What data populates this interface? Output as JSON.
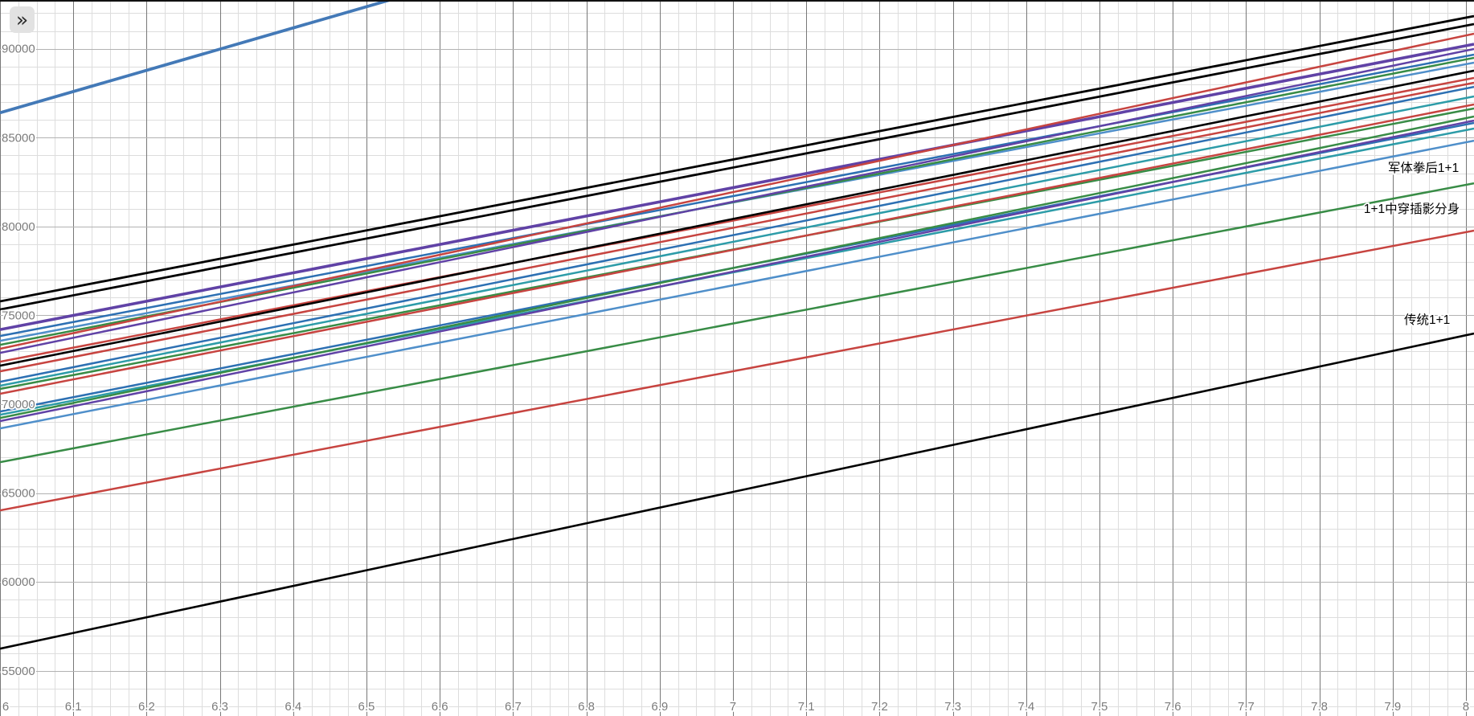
{
  "ui": {
    "expand_button_glyph": "»"
  },
  "chart_data": {
    "type": "line",
    "title": "",
    "xlabel": "",
    "ylabel": "",
    "grid": true,
    "x_axis": {
      "min": 6,
      "max": 8.011,
      "major_step": 0.1,
      "minor_step": 0.025,
      "tick_values": [
        6,
        6.1,
        6.2,
        6.3,
        6.4,
        6.5,
        6.6,
        6.7,
        6.8,
        6.9,
        7,
        7.1,
        7.2,
        7.3,
        7.4,
        7.5,
        7.6,
        7.7,
        7.8,
        7.9,
        8
      ],
      "tick_labels": [
        "6",
        "6.1",
        "6.2",
        "6.3",
        "6.4",
        "6.5",
        "6.6",
        "6.7",
        "6.8",
        "6.9",
        "7",
        "7.1",
        "7.2",
        "7.3",
        "7.4",
        "7.5",
        "7.6",
        "7.7",
        "7.8",
        "7.9",
        "8"
      ]
    },
    "y_axis": {
      "min": 52460,
      "max": 92745,
      "major_step": 5000,
      "minor_step": 1000,
      "tick_values": [
        90000,
        85000,
        80000,
        75000,
        70000,
        65000,
        60000,
        55000
      ],
      "tick_labels": [
        "90000",
        "85000",
        "80000",
        "75000",
        "70000",
        "65000",
        "60000",
        "55000"
      ]
    },
    "palette": {
      "black": "#000000",
      "blue": "#2d70b3",
      "lightblue": "#4f8fca",
      "teal": "#2d9ca8",
      "red": "#c74440",
      "green": "#388c46",
      "purple": "#6042a6",
      "steel": "#4379b7",
      "grid_major_v": "#787878",
      "grid_major_h": "#b2b2b2",
      "grid_minor": "#dddddd",
      "tick_text": "#7b7b7b",
      "label_text": "#000000"
    },
    "series_x": [
      6,
      8.011
    ],
    "series": [
      {
        "color": "steel",
        "width": 3.8,
        "y": [
          86400,
          110400
        ]
      },
      {
        "color": "black",
        "width": 2.8,
        "y": [
          75790,
          91840
        ]
      },
      {
        "color": "black",
        "width": 2.8,
        "y": [
          75330,
          91390
        ]
      },
      {
        "color": "purple",
        "width": 3.6,
        "y": [
          74200,
          90260
        ]
      },
      {
        "color": "blue",
        "width": 2.5,
        "y": [
          73840,
          89670
        ]
      },
      {
        "color": "lightblue",
        "width": 2.5,
        "y": [
          73570,
          89220
        ]
      },
      {
        "color": "green",
        "width": 2.5,
        "y": [
          73340,
          89490
        ]
      },
      {
        "color": "red",
        "width": 2.5,
        "y": [
          73120,
          90850
        ]
      },
      {
        "color": "purple",
        "width": 2.5,
        "y": [
          72890,
          89990
        ]
      },
      {
        "color": "red",
        "width": 2.5,
        "y": [
          72390,
          88360
        ]
      },
      {
        "color": "black",
        "width": 2.6,
        "y": [
          72170,
          88770
        ]
      },
      {
        "color": "red",
        "width": 2.5,
        "y": [
          71850,
          88090
        ]
      },
      {
        "color": "blue",
        "width": 2.5,
        "y": [
          71260,
          87860
        ]
      },
      {
        "color": "teal",
        "width": 2.5,
        "y": [
          71040,
          87320
        ]
      },
      {
        "color": "green",
        "width": 2.5,
        "y": [
          70860,
          86640
        ]
      },
      {
        "color": "red",
        "width": 2.5,
        "y": [
          70590,
          86870
        ]
      },
      {
        "color": "blue",
        "width": 2.5,
        "y": [
          69590,
          85830
        ]
      },
      {
        "color": "teal",
        "width": 2.5,
        "y": [
          69410,
          85510
        ]
      },
      {
        "color": "green",
        "width": 2.5,
        "y": [
          69230,
          86190
        ]
      },
      {
        "color": "purple",
        "width": 2.5,
        "y": [
          69050,
          85960
        ]
      },
      {
        "color": "lightblue",
        "width": 2.5,
        "y": [
          68640,
          84830
        ]
      },
      {
        "color": "green",
        "width": 2.5,
        "y": [
          66740,
          82430
        ]
      },
      {
        "color": "red",
        "width": 2.5,
        "y": [
          64030,
          79770
        ]
      },
      {
        "color": "black",
        "width": 2.6,
        "y": [
          56250,
          73980
        ]
      }
    ],
    "annotations": [
      {
        "text": "军体拳后1+1",
        "x": 7.942,
        "y": 83290
      },
      {
        "text": "1+1中穿插影分身",
        "x": 7.926,
        "y": 80990
      },
      {
        "text": "传统1+1",
        "x": 7.947,
        "y": 74750
      }
    ]
  }
}
